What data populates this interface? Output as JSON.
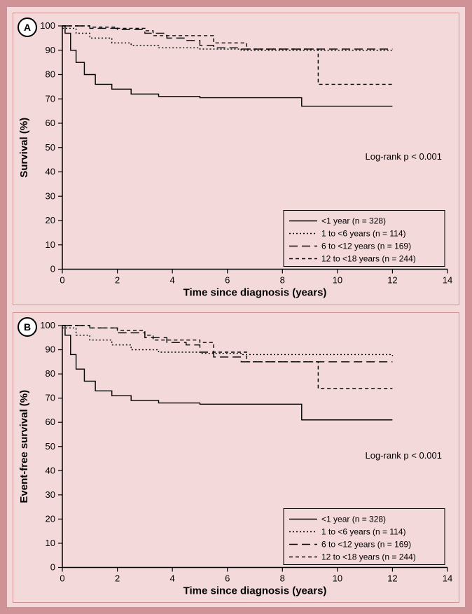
{
  "figure": {
    "frame_border_color": "#cf9297",
    "panel_bg": "#f3d9da",
    "axis_color": "#000000",
    "line_color": "#000000",
    "text_color": "#000000",
    "font_family": "Arial, Helvetica, sans-serif",
    "axis_fontsize": 13,
    "label_fontsize": 15,
    "legend_fontsize": 12,
    "annotation_fontsize": 13
  },
  "panels": [
    {
      "id": "A",
      "xlabel": "Time since diagnosis (years)",
      "ylabel": "Survival (%)",
      "annotation": "Log-rank p < 0.001",
      "xlim": [
        0,
        14
      ],
      "ylim": [
        0,
        100
      ],
      "xticks": [
        0,
        2,
        4,
        6,
        8,
        10,
        12,
        14
      ],
      "yticks": [
        0,
        10,
        20,
        30,
        40,
        50,
        60,
        70,
        80,
        90,
        100
      ],
      "legend_items": [
        {
          "label": "<1 year (n = 328)",
          "dash": "solid"
        },
        {
          "label": "1 to <6 years (n = 114)",
          "dash": "dot"
        },
        {
          "label": "6 to <12 years (n = 169)",
          "dash": "longdash"
        },
        {
          "label": "12 to <18 years (n = 244)",
          "dash": "shortdash"
        }
      ],
      "series": [
        {
          "dash": "solid",
          "points": [
            [
              0,
              100
            ],
            [
              0.1,
              97
            ],
            [
              0.3,
              90
            ],
            [
              0.5,
              85
            ],
            [
              0.8,
              80
            ],
            [
              1.2,
              76
            ],
            [
              1.8,
              74
            ],
            [
              2.5,
              72
            ],
            [
              3.5,
              71
            ],
            [
              5,
              70.5
            ],
            [
              6,
              70.5
            ],
            [
              8,
              70.5
            ],
            [
              8.7,
              67
            ],
            [
              10,
              67
            ],
            [
              12,
              67
            ]
          ]
        },
        {
          "dash": "dot",
          "points": [
            [
              0,
              99
            ],
            [
              0.5,
              97
            ],
            [
              1,
              95
            ],
            [
              1.8,
              93
            ],
            [
              2.5,
              92
            ],
            [
              3.5,
              91
            ],
            [
              5,
              90.5
            ],
            [
              6.5,
              90
            ],
            [
              8,
              90
            ],
            [
              10,
              90
            ],
            [
              12,
              89.5
            ]
          ]
        },
        {
          "dash": "longdash",
          "points": [
            [
              0,
              100
            ],
            [
              1,
              99
            ],
            [
              2,
              98.5
            ],
            [
              3,
              97
            ],
            [
              3.8,
              95
            ],
            [
              4.5,
              94
            ],
            [
              5,
              92
            ],
            [
              5.5,
              91
            ],
            [
              6.5,
              90.5
            ],
            [
              8,
              90.5
            ],
            [
              10,
              90.5
            ],
            [
              12,
              90.5
            ]
          ]
        },
        {
          "dash": "shortdash",
          "points": [
            [
              0,
              100
            ],
            [
              1,
              99.5
            ],
            [
              2,
              99
            ],
            [
              3,
              98
            ],
            [
              3.3,
              96
            ],
            [
              4,
              96
            ],
            [
              5,
              96
            ],
            [
              5.5,
              93
            ],
            [
              6,
              93
            ],
            [
              6.7,
              90.5
            ],
            [
              8,
              90.5
            ],
            [
              9,
              90.5
            ],
            [
              9.3,
              76
            ],
            [
              10,
              76
            ],
            [
              12,
              76
            ]
          ]
        }
      ]
    },
    {
      "id": "B",
      "xlabel": "Time since diagnosis (years)",
      "ylabel": "Event-free survival (%)",
      "annotation": "Log-rank p < 0.001",
      "xlim": [
        0,
        14
      ],
      "ylim": [
        0,
        100
      ],
      "xticks": [
        0,
        2,
        4,
        6,
        8,
        10,
        12,
        14
      ],
      "yticks": [
        0,
        10,
        20,
        30,
        40,
        50,
        60,
        70,
        80,
        90,
        100
      ],
      "legend_items": [
        {
          "label": "<1 year (n = 328)",
          "dash": "solid"
        },
        {
          "label": "1 to <6 years (n = 114)",
          "dash": "dot"
        },
        {
          "label": "6 to <12 years (n = 169)",
          "dash": "longdash"
        },
        {
          "label": "12 to <18 years (n = 244)",
          "dash": "shortdash"
        }
      ],
      "series": [
        {
          "dash": "solid",
          "points": [
            [
              0,
              100
            ],
            [
              0.1,
              96
            ],
            [
              0.3,
              88
            ],
            [
              0.5,
              82
            ],
            [
              0.8,
              77
            ],
            [
              1.2,
              73
            ],
            [
              1.8,
              71
            ],
            [
              2.5,
              69
            ],
            [
              3.5,
              68
            ],
            [
              5,
              67.5
            ],
            [
              6,
              67.5
            ],
            [
              8,
              67.5
            ],
            [
              8.7,
              61
            ],
            [
              10,
              61
            ],
            [
              12,
              61
            ]
          ]
        },
        {
          "dash": "dot",
          "points": [
            [
              0,
              99
            ],
            [
              0.5,
              96
            ],
            [
              1,
              94
            ],
            [
              1.8,
              92
            ],
            [
              2.5,
              90
            ],
            [
              3.5,
              89
            ],
            [
              5,
              88.5
            ],
            [
              6.5,
              88
            ],
            [
              8,
              88
            ],
            [
              10,
              88
            ],
            [
              12,
              87.5
            ]
          ]
        },
        {
          "dash": "longdash",
          "points": [
            [
              0,
              100
            ],
            [
              1,
              99
            ],
            [
              2,
              97
            ],
            [
              3,
              95
            ],
            [
              3.8,
              93
            ],
            [
              4.5,
              92
            ],
            [
              5,
              89
            ],
            [
              5.5,
              87
            ],
            [
              6.5,
              85
            ],
            [
              8,
              85
            ],
            [
              10,
              85
            ],
            [
              12,
              85
            ]
          ]
        },
        {
          "dash": "shortdash",
          "points": [
            [
              0,
              100
            ],
            [
              1,
              99
            ],
            [
              2,
              98
            ],
            [
              3,
              96
            ],
            [
              3.3,
              94
            ],
            [
              4,
              94
            ],
            [
              5,
              93
            ],
            [
              5.5,
              89
            ],
            [
              6,
              89
            ],
            [
              6.7,
              85
            ],
            [
              8,
              85
            ],
            [
              9,
              85
            ],
            [
              9.3,
              74
            ],
            [
              10,
              74
            ],
            [
              12,
              74
            ]
          ]
        }
      ]
    }
  ]
}
